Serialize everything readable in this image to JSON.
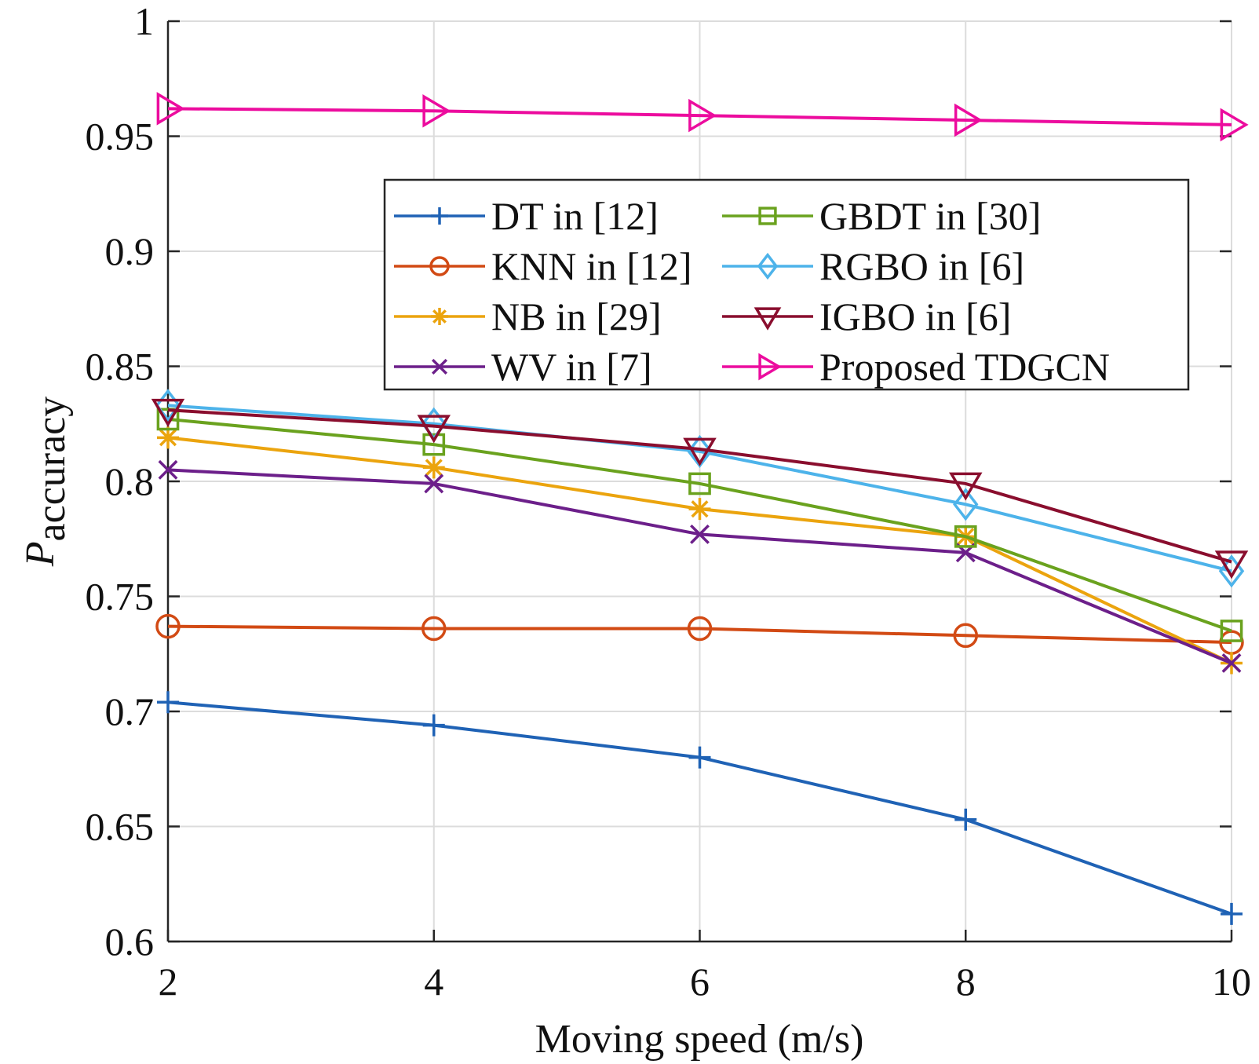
{
  "chart_data": {
    "type": "line",
    "title": "",
    "xlabel": "Moving speed (m/s)",
    "ylabel": {
      "main": "P",
      "subscript": "accuracy"
    },
    "x": [
      2,
      4,
      6,
      8,
      10
    ],
    "xlim": [
      2,
      10
    ],
    "ylim": [
      0.6,
      1.0
    ],
    "xticks": [
      2,
      4,
      6,
      8,
      10
    ],
    "xtick_labels": [
      "2",
      "4",
      "6",
      "8",
      "10"
    ],
    "yticks": [
      0.6,
      0.65,
      0.7,
      0.75,
      0.8,
      0.85,
      0.9,
      0.95,
      1.0
    ],
    "ytick_labels": [
      "0.6",
      "0.65",
      "0.7",
      "0.75",
      "0.8",
      "0.85",
      "0.9",
      "0.95",
      "1"
    ],
    "grid": true,
    "legend_position": "upper-right, two columns",
    "series": [
      {
        "name": "DT in [12]",
        "color": "#1f62b5",
        "marker": "plus",
        "values": [
          0.704,
          0.694,
          0.68,
          0.653,
          0.612
        ]
      },
      {
        "name": "KNN in [12]",
        "color": "#d24a14",
        "marker": "circle",
        "values": [
          0.737,
          0.736,
          0.736,
          0.733,
          0.73
        ]
      },
      {
        "name": "NB in [29]",
        "color": "#eba40e",
        "marker": "asterisk",
        "values": [
          0.819,
          0.806,
          0.788,
          0.776,
          0.721
        ]
      },
      {
        "name": "WV in [7]",
        "color": "#6c1f8a",
        "marker": "x",
        "values": [
          0.805,
          0.799,
          0.777,
          0.769,
          0.721
        ]
      },
      {
        "name": "GBDT in [30]",
        "color": "#6aa21e",
        "marker": "square",
        "values": [
          0.827,
          0.816,
          0.799,
          0.776,
          0.735
        ]
      },
      {
        "name": "RGBO in [6]",
        "color": "#4db3ea",
        "marker": "diamond",
        "values": [
          0.833,
          0.825,
          0.813,
          0.79,
          0.761
        ]
      },
      {
        "name": "IGBO in [6]",
        "color": "#8a0e2e",
        "marker": "triangle-down",
        "values": [
          0.831,
          0.824,
          0.814,
          0.799,
          0.765
        ]
      },
      {
        "name": "Proposed TDGCN",
        "color": "#ec0c9e",
        "marker": "triangle-right",
        "values": [
          0.962,
          0.961,
          0.959,
          0.957,
          0.955
        ]
      }
    ]
  }
}
